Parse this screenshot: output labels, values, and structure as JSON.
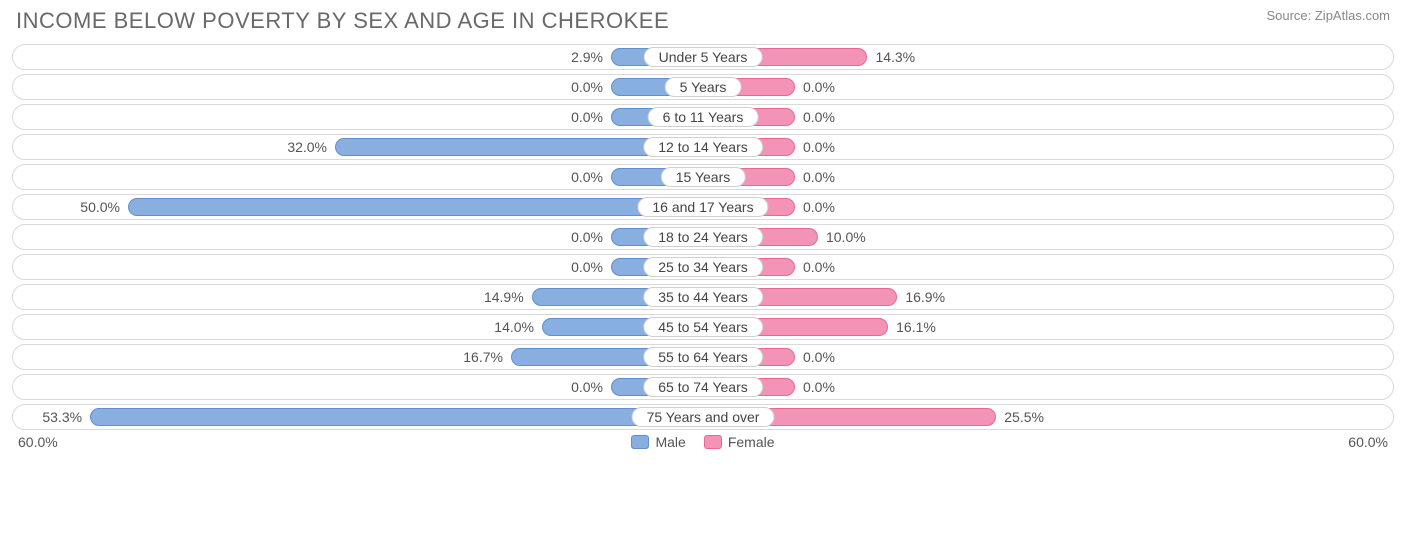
{
  "title": "INCOME BELOW POVERTY BY SEX AND AGE IN CHEROKEE",
  "source": "Source: ZipAtlas.com",
  "axis_max_pct": 60.0,
  "axis_max_label_left": "60.0%",
  "axis_max_label_right": "60.0%",
  "legend": {
    "male": "Male",
    "female": "Female"
  },
  "colors": {
    "male_fill": "#89aee0",
    "male_stroke": "#5f8fce",
    "female_fill": "#f394b6",
    "female_stroke": "#eb6695",
    "track_border": "#d9d9d9",
    "text": "#555555",
    "title_text": "#696969",
    "bg": "#ffffff"
  },
  "min_bar_pct": 8.0,
  "rows": [
    {
      "category": "Under 5 Years",
      "male": 2.9,
      "female": 14.3,
      "male_label": "2.9%",
      "female_label": "14.3%"
    },
    {
      "category": "5 Years",
      "male": 0.0,
      "female": 0.0,
      "male_label": "0.0%",
      "female_label": "0.0%"
    },
    {
      "category": "6 to 11 Years",
      "male": 0.0,
      "female": 0.0,
      "male_label": "0.0%",
      "female_label": "0.0%"
    },
    {
      "category": "12 to 14 Years",
      "male": 32.0,
      "female": 0.0,
      "male_label": "32.0%",
      "female_label": "0.0%"
    },
    {
      "category": "15 Years",
      "male": 0.0,
      "female": 0.0,
      "male_label": "0.0%",
      "female_label": "0.0%"
    },
    {
      "category": "16 and 17 Years",
      "male": 50.0,
      "female": 0.0,
      "male_label": "50.0%",
      "female_label": "0.0%"
    },
    {
      "category": "18 to 24 Years",
      "male": 0.0,
      "female": 10.0,
      "male_label": "0.0%",
      "female_label": "10.0%"
    },
    {
      "category": "25 to 34 Years",
      "male": 0.0,
      "female": 0.0,
      "male_label": "0.0%",
      "female_label": "0.0%"
    },
    {
      "category": "35 to 44 Years",
      "male": 14.9,
      "female": 16.9,
      "male_label": "14.9%",
      "female_label": "16.9%"
    },
    {
      "category": "45 to 54 Years",
      "male": 14.0,
      "female": 16.1,
      "male_label": "14.0%",
      "female_label": "16.1%"
    },
    {
      "category": "55 to 64 Years",
      "male": 16.7,
      "female": 0.0,
      "male_label": "16.7%",
      "female_label": "0.0%"
    },
    {
      "category": "65 to 74 Years",
      "male": 0.0,
      "female": 0.0,
      "male_label": "0.0%",
      "female_label": "0.0%"
    },
    {
      "category": "75 Years and over",
      "male": 53.3,
      "female": 25.5,
      "male_label": "53.3%",
      "female_label": "25.5%"
    }
  ]
}
